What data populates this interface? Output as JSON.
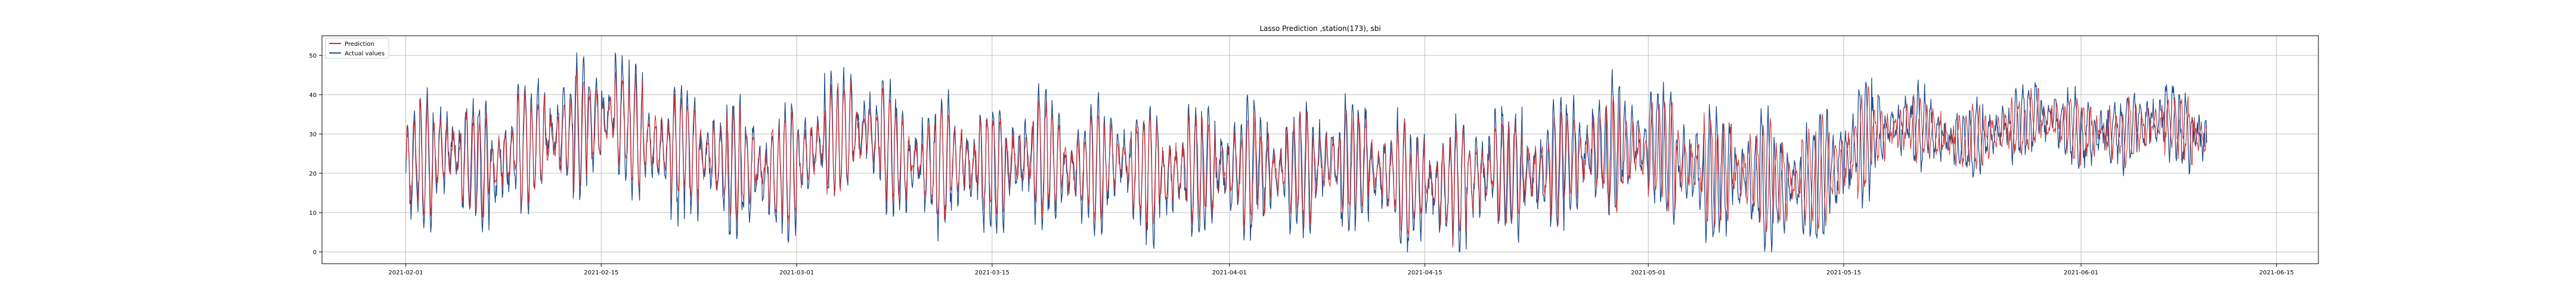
{
  "chart_data": {
    "type": "line",
    "title": "Lasso Prediction ,station(173), sbi",
    "xlabel": "",
    "ylabel": "",
    "xlim": [
      "2021-01-26",
      "2021-06-18"
    ],
    "ylim": [
      -3,
      55
    ],
    "x_ticks": [
      "2021-02-01",
      "2021-02-15",
      "2021-03-01",
      "2021-03-15",
      "2021-04-01",
      "2021-04-15",
      "2021-05-01",
      "2021-05-15",
      "2021-06-01",
      "2021-06-15"
    ],
    "y_ticks": [
      0,
      10,
      20,
      30,
      40,
      50
    ],
    "grid": true,
    "legend_position": "top-left",
    "x_start": "2021-02-01",
    "x_end": "2021-06-10",
    "series": [
      {
        "name": "Prediction",
        "color": "#d62728",
        "x": [
          "2021-02-01",
          "2021-02-04",
          "2021-02-07",
          "2021-02-10",
          "2021-02-13",
          "2021-02-16",
          "2021-02-19",
          "2021-02-22",
          "2021-02-25",
          "2021-02-28",
          "2021-03-03",
          "2021-03-06",
          "2021-03-09",
          "2021-03-12",
          "2021-03-15",
          "2021-03-18",
          "2021-03-21",
          "2021-03-24",
          "2021-03-27",
          "2021-03-30",
          "2021-04-02",
          "2021-04-05",
          "2021-04-08",
          "2021-04-11",
          "2021-04-14",
          "2021-04-17",
          "2021-04-20",
          "2021-04-23",
          "2021-04-26",
          "2021-04-29",
          "2021-05-02",
          "2021-05-05",
          "2021-05-08",
          "2021-05-11",
          "2021-05-14",
          "2021-05-17",
          "2021-05-20",
          "2021-05-23",
          "2021-05-26",
          "2021-05-29",
          "2021-06-01",
          "2021-06-04",
          "2021-06-07",
          "2021-06-10"
        ],
        "values": [
          22,
          26,
          21,
          28,
          30,
          34,
          27,
          25,
          22,
          20,
          28,
          30,
          24,
          23,
          22,
          25,
          20,
          24,
          19,
          22,
          21,
          20,
          23,
          22,
          18,
          17,
          21,
          20,
          24,
          26,
          25,
          21,
          20,
          18,
          20,
          30,
          32,
          28,
          30,
          34,
          31,
          30,
          33,
          29
        ]
      },
      {
        "name": "Actual values",
        "color": "#1f4e8c",
        "x": [
          "2021-02-01",
          "2021-02-04",
          "2021-02-07",
          "2021-02-10",
          "2021-02-13",
          "2021-02-16",
          "2021-02-19",
          "2021-02-22",
          "2021-02-25",
          "2021-02-28",
          "2021-03-03",
          "2021-03-06",
          "2021-03-09",
          "2021-03-12",
          "2021-03-15",
          "2021-03-18",
          "2021-03-21",
          "2021-03-24",
          "2021-03-27",
          "2021-03-30",
          "2021-04-02",
          "2021-04-05",
          "2021-04-08",
          "2021-04-11",
          "2021-04-14",
          "2021-04-17",
          "2021-04-20",
          "2021-04-23",
          "2021-04-26",
          "2021-04-29",
          "2021-05-02",
          "2021-05-05",
          "2021-05-08",
          "2021-05-11",
          "2021-05-14",
          "2021-05-17",
          "2021-05-20",
          "2021-05-23",
          "2021-05-26",
          "2021-05-29",
          "2021-06-01",
          "2021-06-04",
          "2021-06-07",
          "2021-06-10"
        ],
        "values": [
          21,
          27,
          20,
          29,
          31,
          36,
          26,
          24,
          21,
          19,
          29,
          31,
          23,
          22,
          21,
          26,
          19,
          25,
          18,
          21,
          22,
          19,
          24,
          21,
          17,
          16,
          22,
          19,
          25,
          27,
          26,
          20,
          19,
          17,
          19,
          31,
          33,
          27,
          31,
          35,
          30,
          31,
          34,
          28
        ]
      }
    ]
  }
}
